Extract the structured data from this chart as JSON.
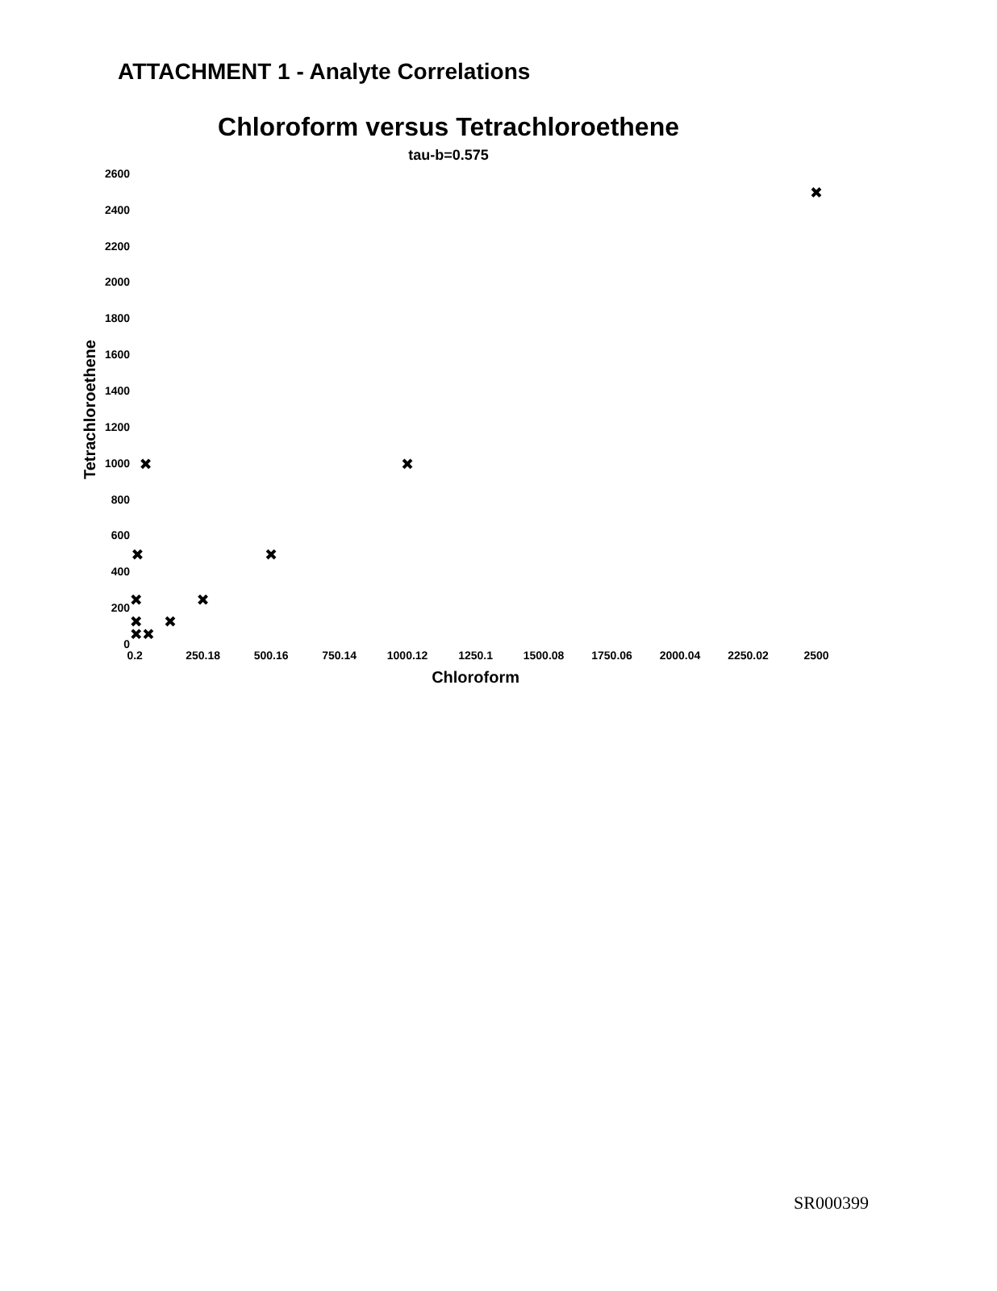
{
  "chart_data": {
    "type": "scatter",
    "title": "Chloroform versus Tetrachloroethene",
    "subtitle": "tau-b=0.575",
    "xlabel": "Chloroform",
    "ylabel": "Tetrachloroethene",
    "annotations": [
      "ATTACHMENT 1 - Analyte Correlations",
      "SR000399"
    ],
    "series": [
      {
        "color": "#000000",
        "x": [
          2500,
          40,
          1000,
          10,
          500,
          5,
          250,
          130,
          5,
          5,
          50
        ],
        "values": [
          2500,
          1000,
          1000,
          500,
          500,
          250,
          250,
          130,
          130,
          60,
          60
        ]
      }
    ],
    "xlim": [
      0.2,
      2500
    ],
    "xticks": [
      0.2,
      250.18,
      500.16,
      750.14,
      1000.12,
      1250.1,
      1500.08,
      1750.06,
      2000.04,
      2250.02,
      2500
    ],
    "ylim": [
      0,
      2600
    ],
    "yticks": [
      0,
      200,
      400,
      600,
      800,
      1000,
      1200,
      1400,
      1600,
      1800,
      2000,
      2200,
      2400,
      2600
    ],
    "grid": false,
    "legend": false,
    "marker": "cross"
  }
}
